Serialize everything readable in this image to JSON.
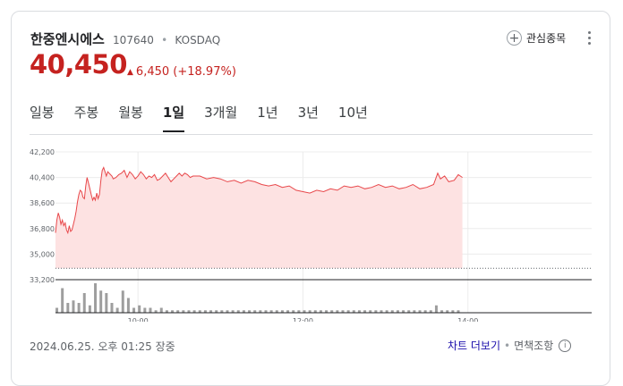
{
  "header": {
    "name": "한중엔시에스",
    "code": "107640",
    "market": "KOSDAQ",
    "watch_label": "관심종목"
  },
  "quote": {
    "price": "40,450",
    "change": "6,450",
    "change_pct": "(+18.97%)",
    "direction": "up",
    "color": "#c5221f"
  },
  "tabs": [
    {
      "label": "일봉",
      "active": false
    },
    {
      "label": "주봉",
      "active": false
    },
    {
      "label": "월봉",
      "active": false
    },
    {
      "label": "1일",
      "active": true
    },
    {
      "label": "3개월",
      "active": false
    },
    {
      "label": "1년",
      "active": false
    },
    {
      "label": "3년",
      "active": false
    },
    {
      "label": "10년",
      "active": false
    }
  ],
  "chart_data": {
    "type": "area",
    "series_color": "#e8474a",
    "fill_color": "#fde2e2",
    "y_ticks": [
      "42,200",
      "40,400",
      "38,600",
      "36,800",
      "35,000",
      "33,200"
    ],
    "y_tick_values": [
      42200,
      40400,
      38600,
      36800,
      35000,
      33200
    ],
    "ylim": [
      33200,
      42200
    ],
    "baseline": 34000,
    "x_ticks": [
      "10:00",
      "12:00",
      "14:00"
    ],
    "x_tick_minutes": [
      60,
      180,
      300
    ],
    "x_range_minutes": [
      0,
      390
    ],
    "grid": true,
    "price": [
      [
        0,
        36500
      ],
      [
        1,
        37400
      ],
      [
        2,
        37900
      ],
      [
        3,
        37600
      ],
      [
        4,
        37100
      ],
      [
        5,
        37400
      ],
      [
        6,
        37000
      ],
      [
        7,
        37200
      ],
      [
        8,
        36700
      ],
      [
        9,
        36500
      ],
      [
        10,
        37000
      ],
      [
        11,
        36600
      ],
      [
        12,
        36700
      ],
      [
        13,
        37100
      ],
      [
        14,
        37500
      ],
      [
        15,
        38000
      ],
      [
        16,
        38700
      ],
      [
        17,
        39200
      ],
      [
        18,
        39500
      ],
      [
        19,
        39400
      ],
      [
        20,
        39000
      ],
      [
        21,
        38900
      ],
      [
        22,
        39800
      ],
      [
        23,
        40400
      ],
      [
        24,
        40000
      ],
      [
        25,
        39600
      ],
      [
        26,
        39200
      ],
      [
        27,
        38800
      ],
      [
        28,
        39000
      ],
      [
        29,
        38800
      ],
      [
        30,
        39300
      ],
      [
        31,
        38900
      ],
      [
        32,
        39200
      ],
      [
        33,
        40200
      ],
      [
        34,
        40900
      ],
      [
        35,
        41100
      ],
      [
        36,
        40800
      ],
      [
        37,
        40500
      ],
      [
        38,
        40800
      ],
      [
        39,
        40700
      ],
      [
        40,
        40600
      ],
      [
        41,
        40500
      ],
      [
        42,
        40300
      ],
      [
        44,
        40400
      ],
      [
        46,
        40600
      ],
      [
        48,
        40700
      ],
      [
        50,
        40900
      ],
      [
        52,
        40400
      ],
      [
        54,
        40800
      ],
      [
        56,
        40600
      ],
      [
        58,
        40300
      ],
      [
        60,
        40500
      ],
      [
        62,
        40800
      ],
      [
        64,
        40600
      ],
      [
        66,
        40300
      ],
      [
        68,
        40500
      ],
      [
        70,
        40400
      ],
      [
        72,
        40600
      ],
      [
        74,
        40200
      ],
      [
        76,
        40300
      ],
      [
        78,
        40500
      ],
      [
        80,
        40700
      ],
      [
        82,
        40400
      ],
      [
        84,
        40100
      ],
      [
        86,
        40300
      ],
      [
        88,
        40500
      ],
      [
        90,
        40700
      ],
      [
        92,
        40500
      ],
      [
        94,
        40700
      ],
      [
        96,
        40600
      ],
      [
        98,
        40400
      ],
      [
        100,
        40500
      ],
      [
        105,
        40500
      ],
      [
        110,
        40300
      ],
      [
        115,
        40400
      ],
      [
        120,
        40300
      ],
      [
        125,
        40100
      ],
      [
        130,
        40200
      ],
      [
        135,
        40000
      ],
      [
        140,
        40200
      ],
      [
        145,
        40100
      ],
      [
        150,
        39900
      ],
      [
        155,
        39800
      ],
      [
        160,
        39900
      ],
      [
        165,
        39700
      ],
      [
        170,
        39800
      ],
      [
        175,
        39500
      ],
      [
        180,
        39400
      ],
      [
        185,
        39300
      ],
      [
        190,
        39500
      ],
      [
        195,
        39400
      ],
      [
        200,
        39600
      ],
      [
        205,
        39500
      ],
      [
        210,
        39800
      ],
      [
        215,
        39700
      ],
      [
        220,
        39800
      ],
      [
        225,
        39600
      ],
      [
        230,
        39700
      ],
      [
        235,
        39900
      ],
      [
        240,
        39700
      ],
      [
        245,
        39800
      ],
      [
        250,
        39600
      ],
      [
        255,
        39700
      ],
      [
        260,
        39900
      ],
      [
        265,
        39600
      ],
      [
        270,
        39700
      ],
      [
        275,
        39900
      ],
      [
        278,
        40700
      ],
      [
        280,
        40300
      ],
      [
        283,
        40500
      ],
      [
        286,
        40100
      ],
      [
        290,
        40200
      ],
      [
        293,
        40600
      ],
      [
        296,
        40400
      ]
    ],
    "volume": [
      [
        1,
        2
      ],
      [
        5,
        10
      ],
      [
        9,
        4
      ],
      [
        13,
        5
      ],
      [
        17,
        4
      ],
      [
        21,
        8
      ],
      [
        25,
        3
      ],
      [
        29,
        12
      ],
      [
        33,
        9
      ],
      [
        37,
        8
      ],
      [
        41,
        4
      ],
      [
        45,
        2
      ],
      [
        49,
        9
      ],
      [
        53,
        6
      ],
      [
        57,
        2
      ],
      [
        61,
        3
      ],
      [
        65,
        2
      ],
      [
        69,
        2
      ],
      [
        73,
        1
      ],
      [
        77,
        2
      ],
      [
        81,
        1
      ],
      [
        85,
        1
      ],
      [
        89,
        1
      ],
      [
        93,
        1
      ],
      [
        97,
        1
      ],
      [
        101,
        1
      ],
      [
        105,
        1
      ],
      [
        109,
        1
      ],
      [
        113,
        1
      ],
      [
        117,
        1
      ],
      [
        121,
        1
      ],
      [
        125,
        1
      ],
      [
        129,
        1
      ],
      [
        133,
        1
      ],
      [
        137,
        1
      ],
      [
        141,
        1
      ],
      [
        145,
        1
      ],
      [
        149,
        1
      ],
      [
        153,
        1
      ],
      [
        157,
        1
      ],
      [
        161,
        1
      ],
      [
        165,
        1
      ],
      [
        169,
        1
      ],
      [
        173,
        1
      ],
      [
        177,
        1
      ],
      [
        181,
        1
      ],
      [
        185,
        1
      ],
      [
        189,
        1
      ],
      [
        193,
        1
      ],
      [
        197,
        1
      ],
      [
        201,
        1
      ],
      [
        205,
        1
      ],
      [
        209,
        1
      ],
      [
        213,
        1
      ],
      [
        217,
        1
      ],
      [
        221,
        1
      ],
      [
        225,
        1
      ],
      [
        229,
        1
      ],
      [
        233,
        1
      ],
      [
        237,
        1
      ],
      [
        241,
        1
      ],
      [
        245,
        1
      ],
      [
        249,
        1
      ],
      [
        253,
        1
      ],
      [
        257,
        1
      ],
      [
        261,
        1
      ],
      [
        265,
        1
      ],
      [
        269,
        1
      ],
      [
        273,
        1
      ],
      [
        277,
        3
      ],
      [
        281,
        1
      ],
      [
        285,
        1
      ],
      [
        289,
        1
      ],
      [
        293,
        1
      ]
    ],
    "volume_color": "#9e9e9e"
  },
  "footer": {
    "timestamp": "2024.06.25. 오후 01:25 장중",
    "more_label": "차트 더보기",
    "disclaimer": "면책조항",
    "info_icon": "i"
  }
}
